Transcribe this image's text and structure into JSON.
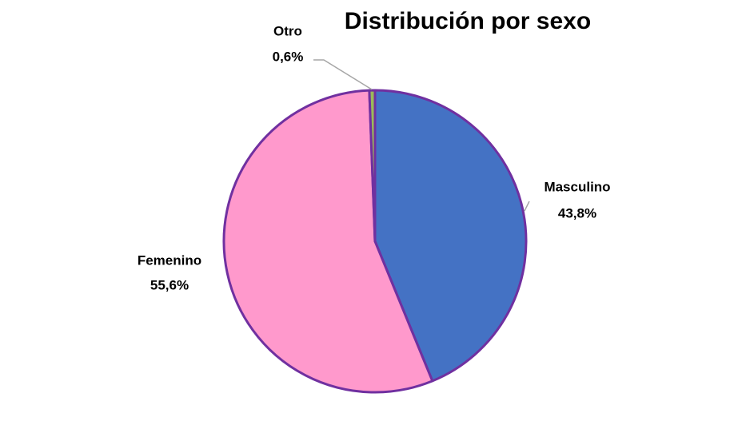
{
  "chart_data": {
    "type": "pie",
    "title": "Distribución  por sexo",
    "categories": [
      "Masculino",
      "Femenino",
      "Otro"
    ],
    "values": [
      43.8,
      55.6,
      0.6
    ],
    "value_labels": [
      "43,8%",
      "55,6%",
      "0,6%"
    ],
    "colors": [
      "#4472c4",
      "#ff99cc",
      "#9bbb59"
    ],
    "edge_color": "#7030a0"
  }
}
